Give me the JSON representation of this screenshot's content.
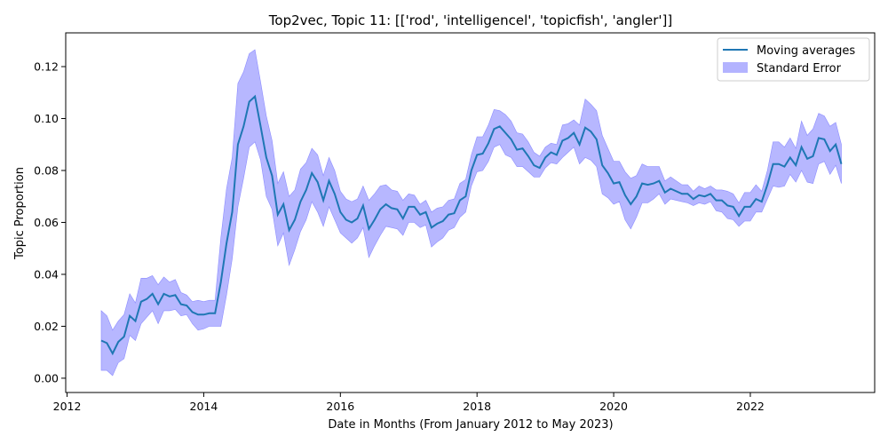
{
  "chart_data": {
    "type": "line",
    "title": "Top2vec, Topic 11: [['rod', 'intelligencel', 'topicfish', 'angler']]",
    "xlabel": "Date in Months (From January 2012 to May 2023)",
    "ylabel": "Topic Proportion",
    "xlim": [
      2011.98,
      2023.82
    ],
    "ylim": [
      -0.0055,
      0.133
    ],
    "x_ticks": [
      2012,
      2014,
      2016,
      2018,
      2020,
      2022
    ],
    "x_tick_labels": [
      "2012",
      "2014",
      "2016",
      "2018",
      "2020",
      "2022"
    ],
    "y_ticks": [
      0.0,
      0.02,
      0.04,
      0.06,
      0.08,
      0.1,
      0.12
    ],
    "y_tick_labels": [
      "0.00",
      "0.02",
      "0.04",
      "0.06",
      "0.08",
      "0.10",
      "0.12"
    ],
    "legend_position": "top-right",
    "grid": false,
    "colors": {
      "line": "#1f77b4",
      "band": "#b3b3ff",
      "band_edge": "#8080ff"
    },
    "x_start": 2012.5,
    "x_step": 0.08333,
    "series": [
      {
        "name": "Moving averages",
        "values": [
          0.0145,
          0.0135,
          0.0095,
          0.014,
          0.016,
          0.024,
          0.022,
          0.0295,
          0.0305,
          0.0325,
          0.0285,
          0.0325,
          0.0315,
          0.032,
          0.0285,
          0.028,
          0.0255,
          0.0245,
          0.0245,
          0.025,
          0.025,
          0.037,
          0.052,
          0.064,
          0.09,
          0.097,
          0.1065,
          0.1085,
          0.097,
          0.085,
          0.078,
          0.063,
          0.067,
          0.057,
          0.061,
          0.068,
          0.0725,
          0.079,
          0.0755,
          0.0685,
          0.076,
          0.071,
          0.064,
          0.061,
          0.06,
          0.0615,
          0.0665,
          0.0575,
          0.061,
          0.065,
          0.067,
          0.0655,
          0.065,
          0.0615,
          0.066,
          0.066,
          0.063,
          0.064,
          0.058,
          0.0595,
          0.0605,
          0.063,
          0.0635,
          0.0685,
          0.07,
          0.08,
          0.086,
          0.0865,
          0.0905,
          0.096,
          0.097,
          0.0945,
          0.092,
          0.088,
          0.0885,
          0.0855,
          0.082,
          0.081,
          0.085,
          0.087,
          0.086,
          0.0915,
          0.0925,
          0.0945,
          0.09,
          0.0965,
          0.095,
          0.092,
          0.082,
          0.079,
          0.075,
          0.0755,
          0.0705,
          0.067,
          0.07,
          0.075,
          0.0745,
          0.075,
          0.076,
          0.0715,
          0.073,
          0.072,
          0.071,
          0.071,
          0.069,
          0.0705,
          0.07,
          0.071,
          0.0685,
          0.0685,
          0.0665,
          0.066,
          0.0625,
          0.066,
          0.066,
          0.069,
          0.068,
          0.0745,
          0.0825,
          0.0825,
          0.0815,
          0.085,
          0.082,
          0.089,
          0.0845,
          0.0855,
          0.0925,
          0.092,
          0.0875,
          0.09,
          0.0825
        ]
      }
    ],
    "band": {
      "name": "Standard Error",
      "lower": [
        0.003,
        0.003,
        0.001,
        0.006,
        0.0075,
        0.0165,
        0.0145,
        0.021,
        0.0235,
        0.026,
        0.021,
        0.026,
        0.026,
        0.0265,
        0.024,
        0.0245,
        0.021,
        0.0185,
        0.019,
        0.02,
        0.02,
        0.02,
        0.032,
        0.046,
        0.066,
        0.077,
        0.089,
        0.091,
        0.084,
        0.07,
        0.065,
        0.051,
        0.056,
        0.0435,
        0.0495,
        0.0565,
        0.061,
        0.068,
        0.064,
        0.0585,
        0.066,
        0.061,
        0.056,
        0.054,
        0.052,
        0.054,
        0.058,
        0.0465,
        0.051,
        0.055,
        0.0585,
        0.058,
        0.0575,
        0.055,
        0.06,
        0.06,
        0.058,
        0.059,
        0.0505,
        0.0525,
        0.054,
        0.057,
        0.058,
        0.062,
        0.064,
        0.074,
        0.0795,
        0.08,
        0.0835,
        0.089,
        0.09,
        0.086,
        0.085,
        0.0815,
        0.0815,
        0.0795,
        0.0775,
        0.0775,
        0.081,
        0.083,
        0.0825,
        0.085,
        0.087,
        0.089,
        0.0825,
        0.085,
        0.084,
        0.0815,
        0.071,
        0.0695,
        0.067,
        0.068,
        0.061,
        0.0575,
        0.062,
        0.0675,
        0.0675,
        0.069,
        0.071,
        0.067,
        0.069,
        0.0685,
        0.068,
        0.0675,
        0.0665,
        0.0675,
        0.067,
        0.068,
        0.0645,
        0.064,
        0.0615,
        0.061,
        0.0585,
        0.0605,
        0.0605,
        0.064,
        0.064,
        0.069,
        0.074,
        0.0735,
        0.074,
        0.0785,
        0.0755,
        0.08,
        0.0755,
        0.075,
        0.0825,
        0.0835,
        0.0785,
        0.082,
        0.075
      ],
      "upper": [
        0.026,
        0.024,
        0.0185,
        0.022,
        0.0245,
        0.0325,
        0.029,
        0.0385,
        0.0385,
        0.0395,
        0.036,
        0.039,
        0.037,
        0.038,
        0.033,
        0.032,
        0.0295,
        0.03,
        0.0295,
        0.03,
        0.03,
        0.054,
        0.073,
        0.085,
        0.1135,
        0.118,
        0.125,
        0.1265,
        0.114,
        0.101,
        0.0915,
        0.075,
        0.0795,
        0.07,
        0.0725,
        0.0805,
        0.083,
        0.0885,
        0.086,
        0.078,
        0.085,
        0.08,
        0.072,
        0.069,
        0.068,
        0.069,
        0.074,
        0.0685,
        0.071,
        0.074,
        0.0745,
        0.0725,
        0.072,
        0.0685,
        0.071,
        0.0705,
        0.067,
        0.0685,
        0.064,
        0.0655,
        0.066,
        0.0685,
        0.069,
        0.075,
        0.0765,
        0.086,
        0.093,
        0.093,
        0.0975,
        0.1035,
        0.103,
        0.1015,
        0.099,
        0.0945,
        0.094,
        0.091,
        0.087,
        0.0855,
        0.089,
        0.0905,
        0.09,
        0.0975,
        0.098,
        0.0995,
        0.0975,
        0.1075,
        0.1055,
        0.103,
        0.0935,
        0.0885,
        0.0835,
        0.0835,
        0.0795,
        0.077,
        0.078,
        0.0825,
        0.0815,
        0.0815,
        0.0815,
        0.076,
        0.0775,
        0.076,
        0.0745,
        0.0745,
        0.072,
        0.074,
        0.073,
        0.074,
        0.0725,
        0.0725,
        0.072,
        0.071,
        0.0675,
        0.0715,
        0.0715,
        0.0745,
        0.072,
        0.08,
        0.091,
        0.091,
        0.089,
        0.0925,
        0.0885,
        0.099,
        0.0935,
        0.096,
        0.102,
        0.101,
        0.097,
        0.0985,
        0.09
      ]
    }
  }
}
